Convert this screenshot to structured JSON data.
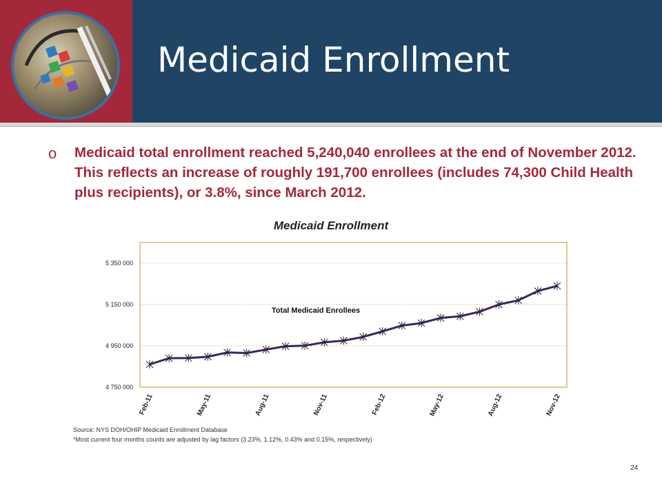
{
  "slide": {
    "title": "Medicaid Enrollment",
    "bullet_marker": "o",
    "bullet_text": "Medicaid total enrollment reached 5,240,040 enrollees at the end of November 2012. This reflects an increase of roughly 191,700 enrollees (includes 74,300 Child Health plus recipients), or 3.8%, since March 2012.",
    "source_line": "Source: NYS DOH/OHIP Medicaid Enrollment Database",
    "footnote_line": "*Most current four months counts are adjusted by lag factors (3.23%, 1.12%, 0.43% and 0.15%, respectively)",
    "page_number": "24"
  },
  "colors": {
    "header_blue": "#1f4466",
    "header_red": "#a3293a",
    "bullet_text": "#a3293a",
    "series_line": "#3b2656",
    "plot_border": "#c8a54a"
  },
  "chart_data": {
    "type": "line",
    "title": "Medicaid Enrollment",
    "x": [
      "Feb-11",
      "Mar-11",
      "Apr-11",
      "May-11",
      "Jun-11",
      "Jul-11",
      "Aug-11",
      "Sep-11",
      "Oct-11",
      "Nov-11",
      "Dec-11",
      "Jan-12",
      "Feb-12",
      "Mar-12",
      "Apr-12",
      "May-12",
      "Jun-12",
      "Jul-12",
      "Aug-12",
      "Sep-12",
      "Oct-12",
      "Nov-12"
    ],
    "x_tick_labels": [
      "Feb-11",
      "May-11",
      "Aug-11",
      "Nov-11",
      "Feb-12",
      "May-12",
      "Aug-12",
      "Nov-12"
    ],
    "x_tick_indices": [
      0,
      3,
      6,
      9,
      12,
      15,
      18,
      21
    ],
    "series": [
      {
        "name": "Total Medicaid Enrollees",
        "values": [
          4860000,
          4890000,
          4891000,
          4897000,
          4918000,
          4915000,
          4932000,
          4948000,
          4951000,
          4967000,
          4975000,
          4993000,
          5020000,
          5048000,
          5060000,
          5085000,
          5093000,
          5115000,
          5150000,
          5170000,
          5215000,
          5240040
        ]
      }
    ],
    "y_ticks": [
      4750000,
      4950000,
      5150000,
      5350000
    ],
    "y_tick_labels": [
      "4 750 000",
      "4 950 000",
      "5 150 000",
      "5 350 000"
    ],
    "ylim": [
      4750000,
      5450000
    ],
    "xlabel": "",
    "ylabel": "",
    "grid": "horizontal dotted",
    "marker": "asterisk"
  }
}
